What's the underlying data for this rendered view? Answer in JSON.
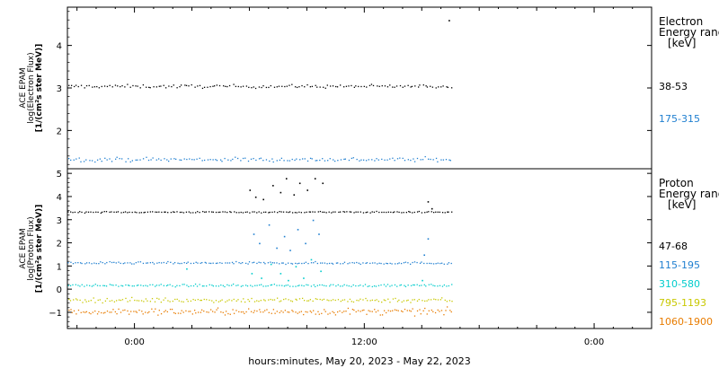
{
  "xlabel": "hours:minutes, May 20, 2023 - May 22, 2023",
  "x_tick_labels": [
    "0:00",
    "12:00",
    "0:00"
  ],
  "chart_data": [
    {
      "type": "scatter",
      "panel": "electron",
      "ylabel_lines": [
        "ACE EPAM",
        "log(Electron Flux)",
        "[1/(cm²s ster MeV)]"
      ],
      "ylim": [
        1.1,
        4.9
      ],
      "yticks": [
        2,
        3,
        4
      ],
      "legend_title_lines": [
        "Electron",
        "Energy range"
      ],
      "legend_unit": "[keV]",
      "grid": false,
      "x_range_hours": [
        -3.5,
        27
      ],
      "series": [
        {
          "name": "38-53",
          "color": "#000000",
          "x_start_hours": -3.5,
          "x_end_hours": 16.6,
          "mean": 3.05,
          "noise": 0.04,
          "samples": 150,
          "extra_points": [
            {
              "x": 16.4,
              "y": 4.6
            }
          ]
        },
        {
          "name": "175-315",
          "color": "#1f7fd0",
          "x_start_hours": -3.5,
          "x_end_hours": 16.6,
          "mean": 1.33,
          "noise": 0.05,
          "samples": 150
        }
      ]
    },
    {
      "type": "scatter",
      "panel": "proton",
      "ylabel_lines": [
        "ACE EPAM",
        "log(Proton Flux)",
        "[1/(cm²s ster MeV)]"
      ],
      "ylim": [
        -1.7,
        5.2
      ],
      "yticks": [
        -1,
        0,
        1,
        2,
        3,
        4,
        5
      ],
      "legend_title_lines": [
        "Proton",
        "Energy range"
      ],
      "legend_unit": "[keV]",
      "grid": false,
      "x_range_hours": [
        -3.5,
        27
      ],
      "series": [
        {
          "name": "47-68",
          "color": "#000000",
          "x_start_hours": -3.5,
          "x_end_hours": 16.6,
          "mean": 3.35,
          "noise": 0.03,
          "samples": 170,
          "event_points": [
            {
              "x": 6.0,
              "y": 4.3
            },
            {
              "x": 6.3,
              "y": 4.0
            },
            {
              "x": 6.7,
              "y": 3.9
            },
            {
              "x": 7.2,
              "y": 4.5
            },
            {
              "x": 7.6,
              "y": 4.2
            },
            {
              "x": 7.9,
              "y": 4.8
            },
            {
              "x": 8.3,
              "y": 4.1
            },
            {
              "x": 8.6,
              "y": 4.6
            },
            {
              "x": 9.0,
              "y": 4.3
            },
            {
              "x": 9.4,
              "y": 4.8
            },
            {
              "x": 9.8,
              "y": 4.6
            },
            {
              "x": 15.3,
              "y": 3.8
            },
            {
              "x": 15.5,
              "y": 3.5
            }
          ]
        },
        {
          "name": "115-195",
          "color": "#1f7fd0",
          "x_start_hours": -3.5,
          "x_end_hours": 16.6,
          "mean": 1.15,
          "noise": 0.05,
          "samples": 170,
          "event_points": [
            {
              "x": 6.2,
              "y": 2.4
            },
            {
              "x": 6.5,
              "y": 2.0
            },
            {
              "x": 7.0,
              "y": 2.8
            },
            {
              "x": 7.4,
              "y": 1.8
            },
            {
              "x": 7.8,
              "y": 2.3
            },
            {
              "x": 8.1,
              "y": 1.7
            },
            {
              "x": 8.5,
              "y": 2.6
            },
            {
              "x": 8.9,
              "y": 2.0
            },
            {
              "x": 9.3,
              "y": 3.0
            },
            {
              "x": 9.6,
              "y": 2.4
            },
            {
              "x": 15.3,
              "y": 2.2
            },
            {
              "x": 15.1,
              "y": 1.5
            }
          ]
        },
        {
          "name": "310-580",
          "color": "#00cccc",
          "x_start_hours": -3.5,
          "x_end_hours": 16.6,
          "mean": 0.18,
          "noise": 0.05,
          "samples": 170,
          "event_points": [
            {
              "x": 6.1,
              "y": 0.7
            },
            {
              "x": 6.6,
              "y": 0.5
            },
            {
              "x": 7.1,
              "y": 1.1
            },
            {
              "x": 7.6,
              "y": 0.7
            },
            {
              "x": 8.0,
              "y": 0.4
            },
            {
              "x": 8.4,
              "y": 1.0
            },
            {
              "x": 8.8,
              "y": 0.5
            },
            {
              "x": 9.2,
              "y": 1.3
            },
            {
              "x": 9.7,
              "y": 0.8
            },
            {
              "x": 2.7,
              "y": 0.9
            },
            {
              "x": 15.0,
              "y": 0.4
            }
          ]
        },
        {
          "name": "795-1193",
          "color": "#c8c800",
          "x_start_hours": -3.5,
          "x_end_hours": 16.6,
          "mean": -0.45,
          "noise": 0.1,
          "samples": 170
        },
        {
          "name": "1060-1900",
          "color": "#e87c00",
          "x_start_hours": -3.5,
          "x_end_hours": 16.6,
          "mean": -0.95,
          "noise": 0.14,
          "samples": 190
        }
      ]
    }
  ]
}
